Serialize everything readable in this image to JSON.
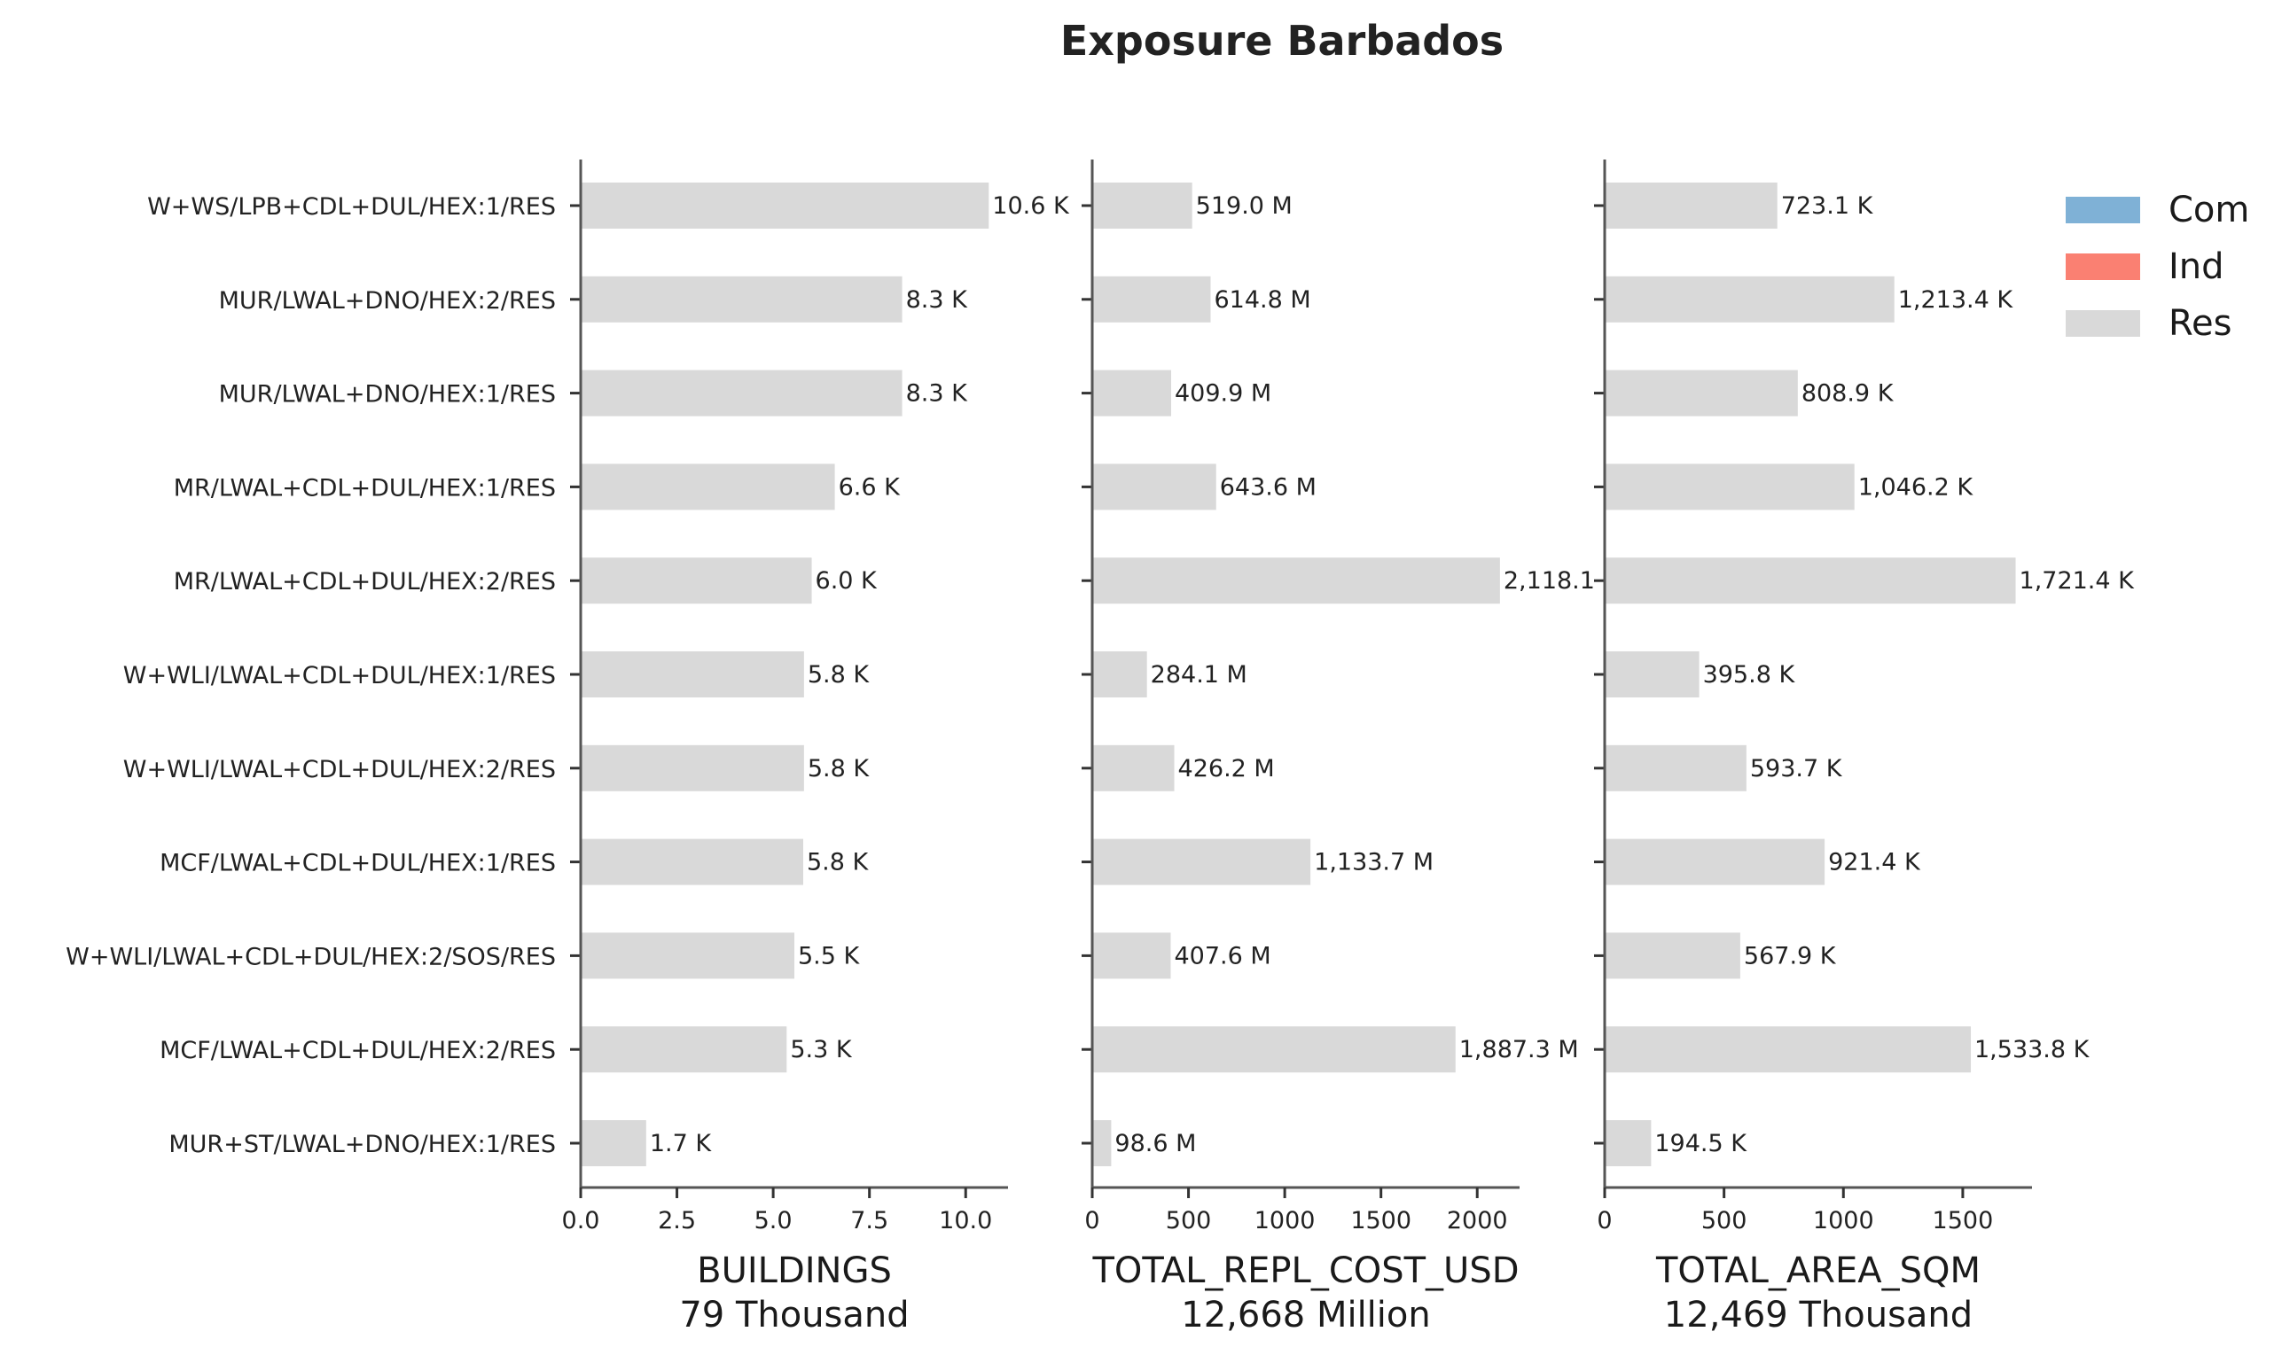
{
  "chart_data": {
    "type": "bar",
    "orientation": "horizontal",
    "stacked": true,
    "title": "Exposure Barbados",
    "categories": [
      "W+WS/LPB+CDL+DUL/HEX:1/RES",
      "MUR/LWAL+DNO/HEX:2/RES",
      "MUR/LWAL+DNO/HEX:1/RES",
      "MR/LWAL+CDL+DUL/HEX:1/RES",
      "MR/LWAL+CDL+DUL/HEX:2/RES",
      "W+WLI/LWAL+CDL+DUL/HEX:1/RES",
      "W+WLI/LWAL+CDL+DUL/HEX:2/RES",
      "MCF/LWAL+CDL+DUL/HEX:1/RES",
      "W+WLI/LWAL+CDL+DUL/HEX:2/SOS/RES",
      "MCF/LWAL+CDL+DUL/HEX:2/RES",
      "MUR+ST/LWAL+DNO/HEX:1/RES"
    ],
    "legend": {
      "placement": "top-right",
      "entries": [
        {
          "name": "Com",
          "color": "#7fb1d6"
        },
        {
          "name": "Ind",
          "color": "#fa8072"
        },
        {
          "name": "Res",
          "color": "#d9d9d9"
        }
      ]
    },
    "panels": [
      {
        "xlabel": "BUILDINGS",
        "total": "79 Thousand",
        "xlim": [
          0,
          11.1
        ],
        "ticks": [
          0,
          2.5,
          5,
          7.5,
          10
        ],
        "tick_labels": [
          "0.0",
          "2.5",
          "5.0",
          "7.5",
          "10.0"
        ],
        "series": [
          {
            "name": "Res",
            "values": [
              10.6,
              8.35,
              8.35,
              6.6,
              6.0,
              5.8,
              5.8,
              5.78,
              5.55,
              5.35,
              1.7
            ]
          }
        ],
        "data_labels": [
          "10.6 K",
          "8.3 K",
          "8.3 K",
          "6.6 K",
          "6.0 K",
          "5.8 K",
          "5.8 K",
          "5.8 K",
          "5.5 K",
          "5.3 K",
          "1.7 K"
        ]
      },
      {
        "xlabel": "TOTAL_REPL_COST_USD",
        "total": "12,668 Million",
        "xlim": [
          0,
          2220
        ],
        "ticks": [
          0,
          500,
          1000,
          1500,
          2000
        ],
        "tick_labels": [
          "0",
          "500",
          "1000",
          "1500",
          "2000"
        ],
        "series": [
          {
            "name": "Res",
            "values": [
              519.0,
              614.8,
              409.9,
              643.6,
              2118.1,
              284.1,
              426.2,
              1133.7,
              407.6,
              1887.3,
              98.6
            ]
          }
        ],
        "data_labels": [
          "519.0 M",
          "614.8 M",
          "409.9 M",
          "643.6 M",
          "2,118.1",
          "284.1 M",
          "426.2 M",
          "1,133.7 M",
          "407.6 M",
          "1,887.3 M",
          "98.6 M"
        ]
      },
      {
        "xlabel": "TOTAL_AREA_SQM",
        "total": "12,469 Thousand",
        "xlim": [
          0,
          1790
        ],
        "ticks": [
          0,
          500,
          1000,
          1500
        ],
        "tick_labels": [
          "0",
          "500",
          "1000",
          "1500"
        ],
        "series": [
          {
            "name": "Res",
            "values": [
              723.1,
              1213.4,
              808.9,
              1046.2,
              1721.4,
              395.8,
              593.7,
              921.4,
              567.9,
              1533.8,
              194.5
            ]
          }
        ],
        "data_labels": [
          "723.1 K",
          "1,213.4 K",
          "808.9 K",
          "1,046.2 K",
          "1,721.4 K",
          "395.8 K",
          "593.7 K",
          "921.4 K",
          "567.9 K",
          "1,533.8 K",
          "194.5 K"
        ]
      }
    ],
    "colors": {
      "bar": "#d9d9d9",
      "axis": "#555555",
      "text": "#222222"
    }
  }
}
